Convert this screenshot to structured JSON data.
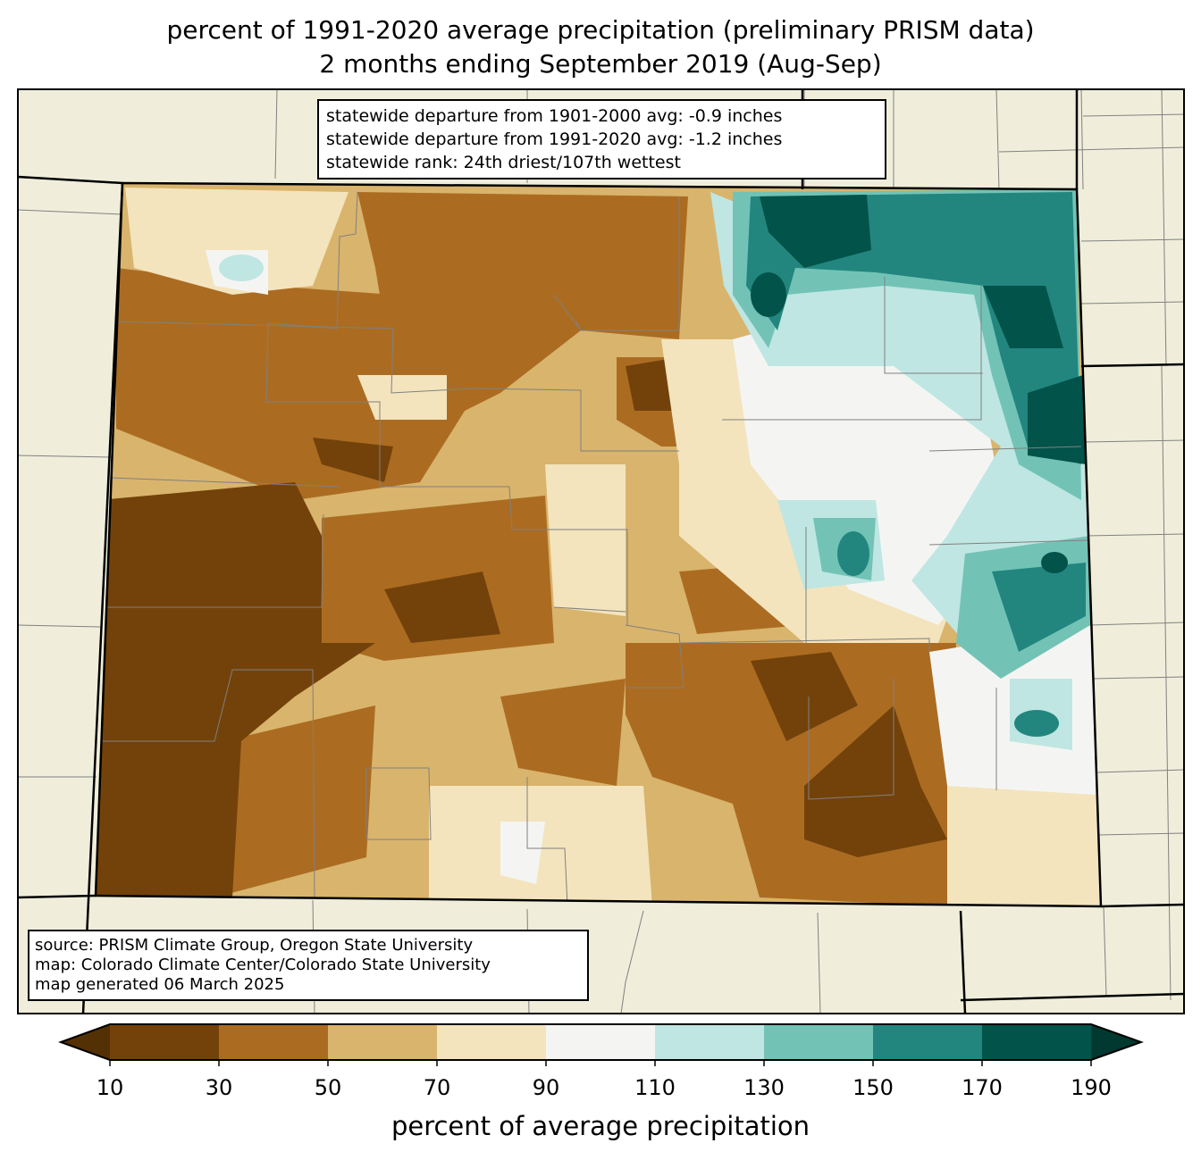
{
  "title": {
    "line1": "percent of 1991-2020 average precipitation (preliminary PRISM data)",
    "line2": "2 months ending September 2019 (Aug-Sep)"
  },
  "stats_box": {
    "line1": "statewide departure from 1901-2000 avg: -0.9 inches",
    "line2": "statewide departure from 1991-2020 avg: -1.2 inches",
    "line3": "statewide rank: 24th driest/107th wettest"
  },
  "source_box": {
    "line1": "source: PRISM Climate Group, Oregon State University",
    "line2": "map: Colorado Climate Center/Colorado State University",
    "line3": "map generated 06 March 2025"
  },
  "colorbar": {
    "label": "percent of average precipitation",
    "ticks": [
      "10",
      "30",
      "50",
      "70",
      "90",
      "110",
      "130",
      "150",
      "170",
      "190"
    ],
    "under_color": "#543005",
    "over_color": "#01382f",
    "colors": [
      "#73420a",
      "#ab6c22",
      "#d9b46c",
      "#f3e4bd",
      "#f4f5f3",
      "#bfe6e2",
      "#72c3b6",
      "#22867f",
      "#02534a"
    ]
  },
  "map_colors": {
    "background": "#f0eedb",
    "border": "#000000",
    "county_lines": "#808080"
  }
}
